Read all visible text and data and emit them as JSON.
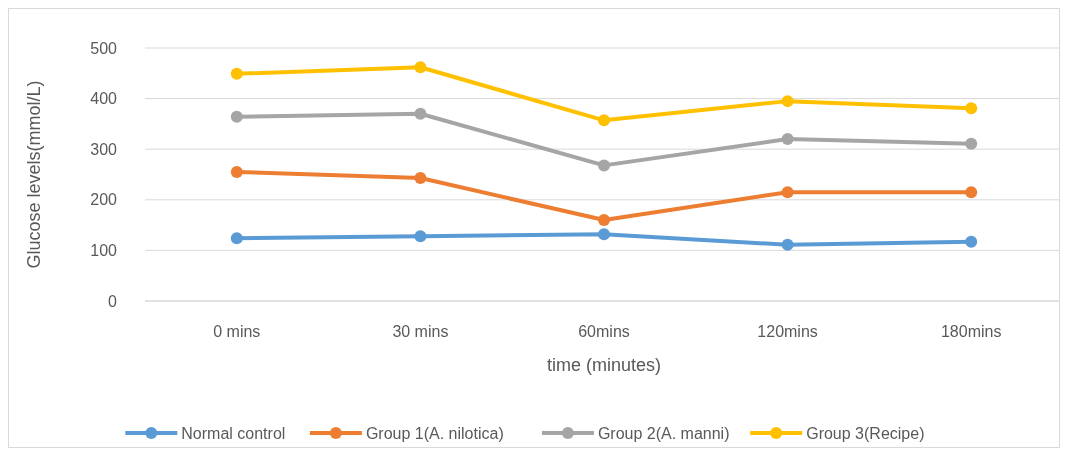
{
  "chart_data": {
    "type": "line",
    "xlabel": "time (minutes)",
    "ylabel": "Glucose levels(mmol/L)",
    "categories": [
      "0 mins",
      "30 mins",
      "60mins",
      "120mins",
      "180mins"
    ],
    "series": [
      {
        "name": "Normal control",
        "color": "#5b9bd5",
        "values": [
          124,
          128,
          132,
          111,
          117
        ]
      },
      {
        "name": "Group 1(A. nilotica)",
        "color": "#ed7d31",
        "values": [
          255,
          243,
          160,
          215,
          215
        ]
      },
      {
        "name": "Group 2(A. manni)",
        "color": "#a5a5a5",
        "values": [
          364,
          370,
          268,
          320,
          311
        ]
      },
      {
        "name": "Group 3(Recipe)",
        "color": "#ffc000",
        "values": [
          449,
          462,
          357,
          395,
          381
        ]
      }
    ],
    "ylim": [
      0,
      500
    ],
    "yticks": [
      0,
      100,
      200,
      300,
      400,
      500
    ],
    "grid": "y",
    "legend": "bottom",
    "marker": "circle",
    "line_style": "solid"
  }
}
